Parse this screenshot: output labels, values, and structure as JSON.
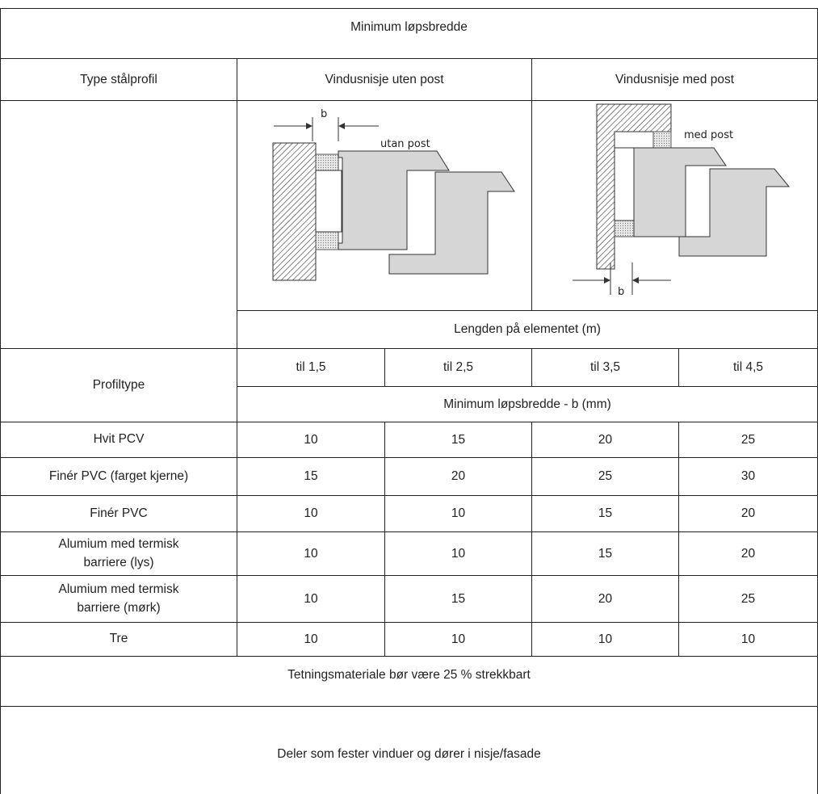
{
  "table": {
    "title": "Minimum løpsbredde",
    "header": {
      "type": "Type stålprofil",
      "col_a": "Vindusnisje uten post",
      "col_b": "Vindusnisje med post"
    },
    "figures": {
      "a": {
        "dimension": "b",
        "label": "utan post"
      },
      "b": {
        "dimension": "b",
        "label": "med post"
      }
    },
    "length_header": "Lengden på elementet (m)",
    "profile_header": "Profiltype",
    "lengths": [
      "til 1,5",
      "til 2,5",
      "til 3,5",
      "til 4,5"
    ],
    "width_header": "Minimum løpsbredde - b (mm)",
    "rows": [
      {
        "profile": "Hvit PCV",
        "values": [
          10,
          15,
          20,
          25
        ]
      },
      {
        "profile": "Finér PVC (farget kjerne)",
        "values": [
          15,
          20,
          25,
          30
        ]
      },
      {
        "profile": "Finér PVC",
        "values": [
          10,
          10,
          15,
          20
        ]
      },
      {
        "profile": "Alumium med termisk barriere (lys)",
        "values": [
          10,
          10,
          15,
          20
        ]
      },
      {
        "profile": "Alumium med termisk barriere (mørk)",
        "values": [
          10,
          15,
          20,
          25
        ]
      },
      {
        "profile": "Tre",
        "values": [
          10,
          10,
          10,
          10
        ]
      }
    ],
    "notes": [
      "Tetningsmateriale bør være 25 % strekkbart",
      "Deler som fester vinduer og dører i nisje/fasade"
    ]
  }
}
